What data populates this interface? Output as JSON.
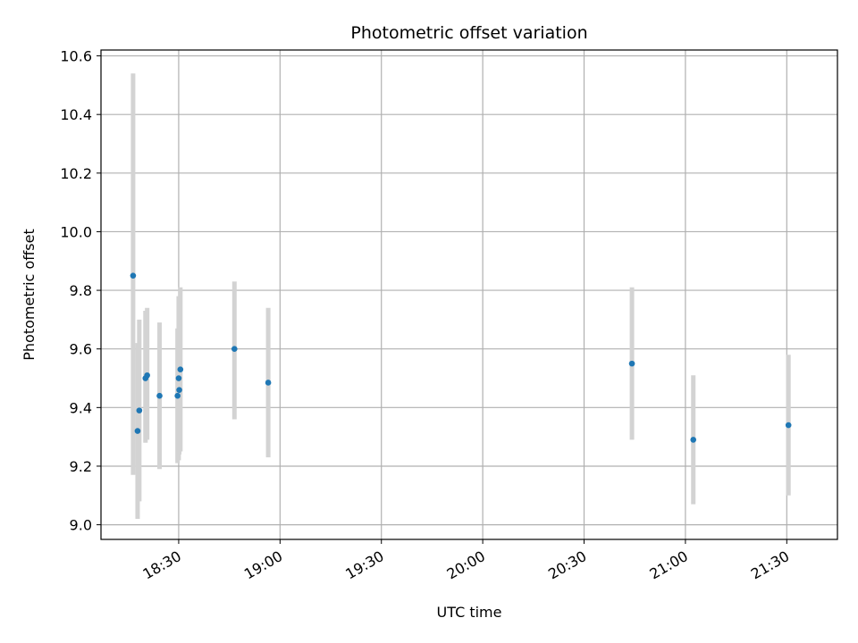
{
  "chart_data": {
    "type": "scatter",
    "title": "Photometric offset variation",
    "xlabel": "UTC time",
    "ylabel": "Photometric offset",
    "grid": true,
    "legend": "none",
    "marker_color": "#1f77b4",
    "errorbar_color": "#d3d3d3",
    "xlim": [
      "18:07",
      "21:45"
    ],
    "ylim": [
      8.95,
      10.62
    ],
    "xticks": [
      "18:30",
      "19:00",
      "19:30",
      "20:00",
      "20:30",
      "21:00",
      "21:30"
    ],
    "yticks": [
      "9.0",
      "9.2",
      "9.4",
      "9.6",
      "9.8",
      "10.0",
      "10.2",
      "10.4",
      "10.6"
    ],
    "points": [
      {
        "x": "18:16:30",
        "y": 9.85,
        "yerr_low": 9.17,
        "yerr_high": 10.54
      },
      {
        "x": "18:17:50",
        "y": 9.32,
        "yerr_low": 9.02,
        "yerr_high": 9.62
      },
      {
        "x": "18:18:20",
        "y": 9.39,
        "yerr_low": 9.08,
        "yerr_high": 9.7
      },
      {
        "x": "18:20:10",
        "y": 9.5,
        "yerr_low": 9.28,
        "yerr_high": 9.73
      },
      {
        "x": "18:20:40",
        "y": 9.51,
        "yerr_low": 9.29,
        "yerr_high": 9.74
      },
      {
        "x": "18:24:20",
        "y": 9.44,
        "yerr_low": 9.19,
        "yerr_high": 9.69
      },
      {
        "x": "18:29:40",
        "y": 9.44,
        "yerr_low": 9.21,
        "yerr_high": 9.67
      },
      {
        "x": "18:30:00",
        "y": 9.5,
        "yerr_low": 9.22,
        "yerr_high": 9.78
      },
      {
        "x": "18:30:10",
        "y": 9.46,
        "yerr_low": 9.24,
        "yerr_high": 9.68
      },
      {
        "x": "18:30:30",
        "y": 9.53,
        "yerr_low": 9.25,
        "yerr_high": 9.81
      },
      {
        "x": "18:46:30",
        "y": 9.6,
        "yerr_low": 9.36,
        "yerr_high": 9.83
      },
      {
        "x": "18:56:30",
        "y": 9.485,
        "yerr_low": 9.23,
        "yerr_high": 9.74
      },
      {
        "x": "20:44:10",
        "y": 9.55,
        "yerr_low": 9.29,
        "yerr_high": 9.81
      },
      {
        "x": "21:02:20",
        "y": 9.29,
        "yerr_low": 9.07,
        "yerr_high": 9.51
      },
      {
        "x": "21:30:30",
        "y": 9.34,
        "yerr_low": 9.1,
        "yerr_high": 9.58
      }
    ]
  }
}
